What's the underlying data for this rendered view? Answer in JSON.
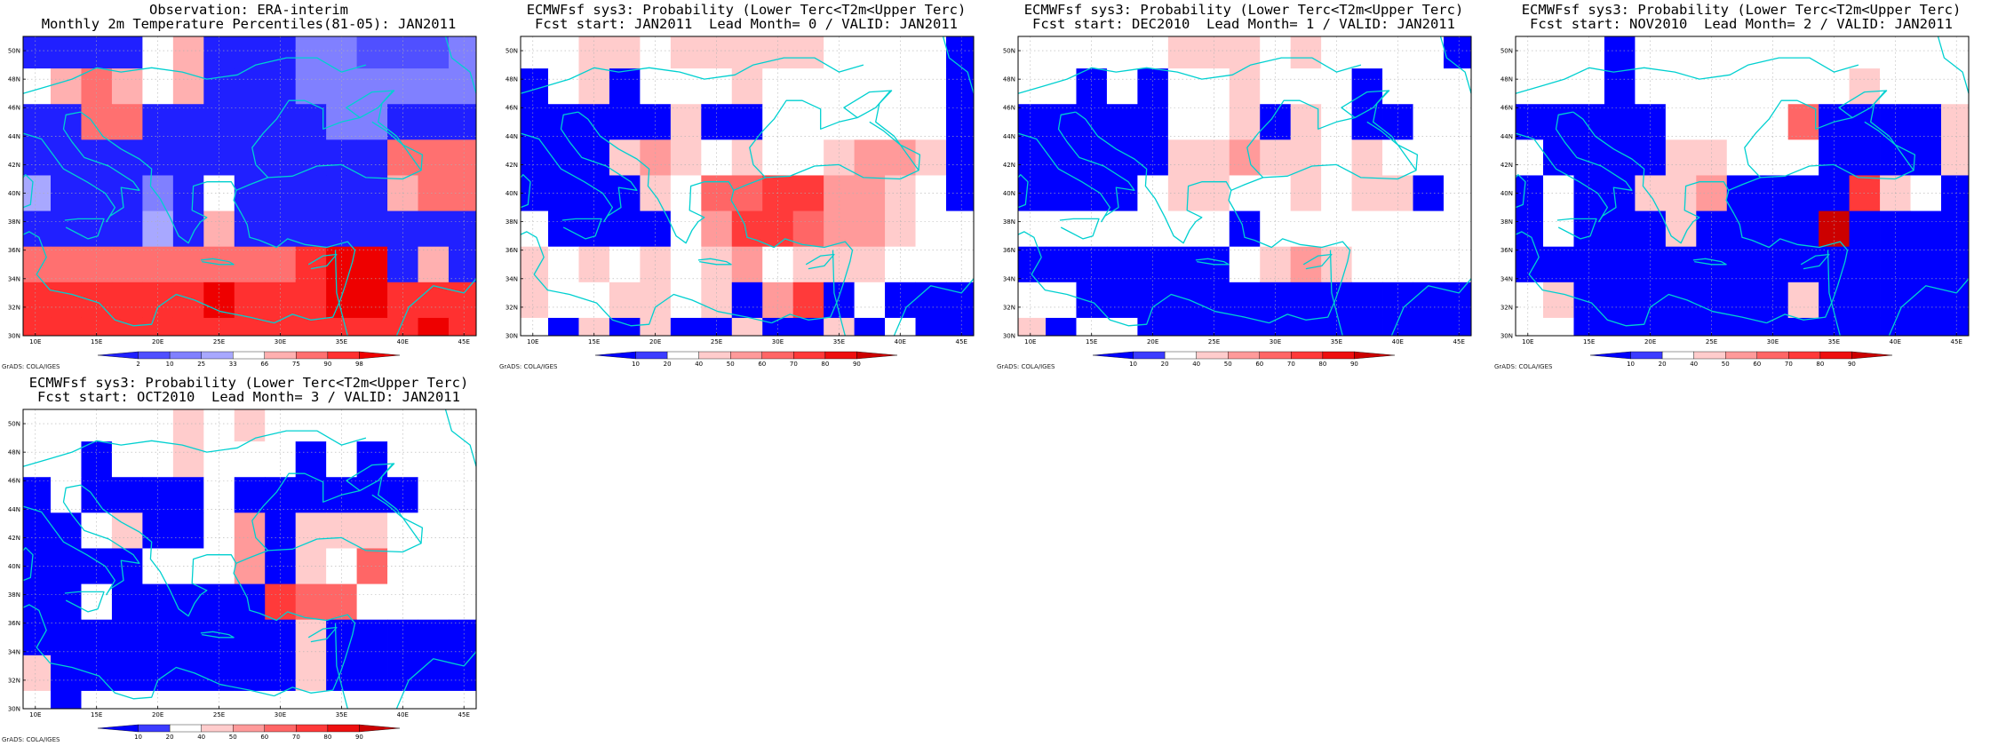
{
  "colors": {
    "coast": "#00d0d0",
    "grid": "#b0b0b0",
    "obs_scale": [
      "#2020ff",
      "#5050ff",
      "#8080ff",
      "#a8a8ff",
      "#ffffff",
      "#ffb0b0",
      "#ff7070",
      "#ff3030",
      "#ee0000"
    ],
    "prob_scale": [
      "#0000ff",
      "#3c3cff",
      "#ffffff",
      "#ffcccc",
      "#ff9a9a",
      "#ff6666",
      "#ff3a3a",
      "#ee1010",
      "#cc0000"
    ]
  },
  "credit": "GrADS: COLA/IGES",
  "lat_labels": [
    "30N",
    "32N",
    "34N",
    "36N",
    "38N",
    "40N",
    "42N",
    "44N",
    "46N",
    "48N",
    "50N"
  ],
  "lon_labels": [
    "10E",
    "15E",
    "20E",
    "25E",
    "30E",
    "35E",
    "40E",
    "45E"
  ],
  "panels": [
    {
      "title1": "Observation: ERA-interim",
      "title2": "Monthly 2m Temperature Percentiles(81-05): JAN2011",
      "colorbar": {
        "labels": [
          "2",
          "10",
          "25",
          "33",
          "66",
          "75",
          "90",
          "98"
        ]
      },
      "chart_data": {
        "type": "heatmap",
        "title": "Observation: ERA-interim / Monthly 2m Temperature Percentiles(81-05): JAN2011",
        "x_range_deg_E": [
          9,
          46
        ],
        "y_range_deg_N": [
          30,
          51
        ],
        "grid_deg": 2.5,
        "rows_lat_centers_N_desc": [
          49.75,
          47.5,
          45,
          42.5,
          40,
          37.5,
          35,
          32.5,
          30.5
        ],
        "cols_lon_centers_E": [
          9.75,
          12.5,
          15,
          17.5,
          20,
          22.5,
          25,
          27.5,
          30,
          32.5,
          35,
          37.5,
          40,
          42.5,
          45
        ],
        "values_class_index": [
          [
            0,
            0,
            0,
            0,
            4,
            5,
            0,
            0,
            0,
            2,
            2,
            1,
            1,
            1,
            2
          ],
          [
            4,
            5,
            6,
            5,
            4,
            5,
            0,
            0,
            0,
            2,
            2,
            2,
            2,
            2,
            2
          ],
          [
            0,
            0,
            6,
            6,
            0,
            0,
            0,
            0,
            0,
            0,
            2,
            2,
            0,
            0,
            0
          ],
          [
            0,
            0,
            0,
            0,
            0,
            0,
            0,
            0,
            0,
            0,
            0,
            0,
            6,
            6,
            6
          ],
          [
            3,
            0,
            0,
            0,
            2,
            0,
            4,
            0,
            0,
            0,
            0,
            0,
            5,
            6,
            6
          ],
          [
            0,
            0,
            0,
            0,
            3,
            0,
            5,
            0,
            0,
            0,
            0,
            0,
            0,
            0,
            0
          ],
          [
            6,
            6,
            6,
            6,
            6,
            6,
            6,
            6,
            6,
            7,
            8,
            8,
            0,
            5,
            0
          ],
          [
            7,
            7,
            7,
            7,
            7,
            7,
            8,
            7,
            7,
            7,
            8,
            8,
            7,
            7,
            7
          ],
          [
            7,
            7,
            7,
            7,
            7,
            7,
            7,
            7,
            7,
            7,
            7,
            7,
            7,
            8,
            7
          ]
        ],
        "class_legend": [
          "<2",
          "2-10",
          "10-25",
          "25-33",
          "33-66",
          "66-75",
          "75-90",
          "90-98",
          ">98"
        ]
      }
    },
    {
      "title1": "ECMWFsf sys3: Probability (Lower Terc<T2m<Upper Terc)",
      "title2": "Fcst start: JAN2011  Lead Month= 0 / VALID: JAN2011",
      "colorbar": {
        "labels": [
          "10",
          "20",
          "40",
          "50",
          "60",
          "70",
          "80",
          "90"
        ]
      },
      "chart_data": {
        "type": "heatmap",
        "x_range_deg_E": [
          9,
          46
        ],
        "y_range_deg_N": [
          30,
          51
        ],
        "grid_deg": 2.5,
        "values_class_index": [
          [
            2,
            2,
            3,
            3,
            2,
            3,
            3,
            3,
            3,
            3,
            2,
            2,
            2,
            2,
            0
          ],
          [
            0,
            2,
            3,
            0,
            2,
            2,
            2,
            3,
            2,
            2,
            2,
            2,
            2,
            2,
            0
          ],
          [
            0,
            0,
            0,
            0,
            0,
            3,
            0,
            0,
            2,
            2,
            2,
            2,
            2,
            2,
            0
          ],
          [
            0,
            0,
            0,
            3,
            4,
            3,
            2,
            3,
            2,
            2,
            3,
            4,
            4,
            3,
            0
          ],
          [
            0,
            0,
            0,
            0,
            3,
            2,
            5,
            5,
            6,
            6,
            4,
            4,
            3,
            2,
            0
          ],
          [
            2,
            0,
            0,
            0,
            0,
            2,
            4,
            6,
            6,
            5,
            4,
            4,
            3,
            2,
            2
          ],
          [
            3,
            2,
            3,
            2,
            3,
            2,
            3,
            4,
            2,
            3,
            3,
            3,
            2,
            2,
            2
          ],
          [
            3,
            2,
            2,
            3,
            3,
            2,
            3,
            0,
            4,
            6,
            0,
            2,
            0,
            0,
            0
          ],
          [
            2,
            0,
            3,
            0,
            3,
            0,
            0,
            3,
            0,
            0,
            3,
            0,
            2,
            0,
            0
          ]
        ]
      }
    },
    {
      "title1": "ECMWFsf sys3: Probability (Lower Terc<T2m<Upper Terc)",
      "title2": "Fcst start: DEC2010  Lead Month= 1 / VALID: JAN2011",
      "colorbar": {
        "labels": [
          "10",
          "20",
          "40",
          "50",
          "60",
          "70",
          "80",
          "90"
        ]
      },
      "chart_data": {
        "type": "heatmap",
        "x_range_deg_E": [
          9,
          46
        ],
        "y_range_deg_N": [
          30,
          51
        ],
        "grid_deg": 2.5,
        "values_class_index": [
          [
            2,
            2,
            2,
            2,
            2,
            3,
            3,
            3,
            2,
            3,
            2,
            2,
            2,
            2,
            0
          ],
          [
            2,
            2,
            0,
            2,
            0,
            2,
            2,
            3,
            2,
            2,
            2,
            0,
            2,
            2,
            2
          ],
          [
            0,
            0,
            0,
            0,
            0,
            2,
            2,
            3,
            0,
            3,
            2,
            0,
            0,
            2,
            2
          ],
          [
            0,
            0,
            0,
            0,
            0,
            3,
            3,
            4,
            3,
            3,
            2,
            3,
            2,
            2,
            2
          ],
          [
            0,
            0,
            0,
            0,
            2,
            3,
            3,
            2,
            2,
            3,
            2,
            3,
            3,
            0,
            2
          ],
          [
            2,
            2,
            2,
            2,
            2,
            2,
            2,
            0,
            2,
            2,
            2,
            2,
            2,
            2,
            2
          ],
          [
            0,
            0,
            0,
            0,
            0,
            0,
            0,
            2,
            3,
            4,
            3,
            2,
            2,
            2,
            2
          ],
          [
            2,
            2,
            0,
            0,
            0,
            0,
            0,
            0,
            0,
            0,
            0,
            0,
            0,
            0,
            0
          ],
          [
            3,
            0,
            2,
            2,
            0,
            0,
            0,
            0,
            0,
            0,
            0,
            0,
            0,
            0,
            0
          ]
        ]
      }
    },
    {
      "title1": "ECMWFsf sys3: Probability (Lower Terc<T2m<Upper Terc)",
      "title2": "Fcst start: NOV2010  Lead Month= 2 / VALID: JAN2011",
      "colorbar": {
        "labels": [
          "10",
          "20",
          "40",
          "50",
          "60",
          "70",
          "80",
          "90"
        ]
      },
      "chart_data": {
        "type": "heatmap",
        "x_range_deg_E": [
          9,
          46
        ],
        "y_range_deg_N": [
          30,
          51
        ],
        "grid_deg": 2.5,
        "values_class_index": [
          [
            2,
            2,
            2,
            0,
            2,
            2,
            2,
            2,
            2,
            2,
            2,
            2,
            2,
            2,
            2
          ],
          [
            2,
            2,
            2,
            0,
            2,
            2,
            2,
            2,
            2,
            2,
            2,
            3,
            2,
            2,
            2
          ],
          [
            0,
            0,
            0,
            0,
            0,
            2,
            2,
            2,
            2,
            5,
            0,
            0,
            0,
            0,
            3
          ],
          [
            2,
            0,
            0,
            0,
            0,
            3,
            3,
            2,
            2,
            2,
            0,
            0,
            0,
            0,
            3
          ],
          [
            0,
            2,
            0,
            0,
            3,
            3,
            4,
            0,
            0,
            0,
            0,
            6,
            3,
            2,
            0
          ],
          [
            0,
            2,
            0,
            0,
            0,
            3,
            0,
            0,
            0,
            0,
            8,
            0,
            0,
            0,
            0
          ],
          [
            0,
            0,
            0,
            0,
            0,
            0,
            0,
            0,
            0,
            0,
            0,
            0,
            0,
            0,
            0
          ],
          [
            2,
            3,
            0,
            0,
            0,
            0,
            0,
            0,
            0,
            3,
            0,
            0,
            0,
            0,
            0
          ],
          [
            2,
            2,
            0,
            0,
            0,
            0,
            0,
            0,
            0,
            0,
            0,
            0,
            0,
            0,
            0
          ]
        ]
      }
    },
    {
      "title1": "ECMWFsf sys3: Probability (Lower Terc<T2m<Upper Terc)",
      "title2": "Fcst start: OCT2010  Lead Month= 3 / VALID: JAN2011",
      "colorbar": {
        "labels": [
          "10",
          "20",
          "40",
          "50",
          "60",
          "70",
          "80",
          "90"
        ]
      },
      "chart_data": {
        "type": "heatmap",
        "x_range_deg_E": [
          9,
          46
        ],
        "y_range_deg_N": [
          30,
          51
        ],
        "grid_deg": 2.5,
        "values_class_index": [
          [
            2,
            2,
            2,
            2,
            2,
            3,
            2,
            3,
            2,
            2,
            2,
            2,
            2,
            2,
            2
          ],
          [
            2,
            2,
            0,
            2,
            2,
            3,
            2,
            2,
            2,
            0,
            2,
            0,
            2,
            2,
            2
          ],
          [
            0,
            2,
            0,
            0,
            0,
            0,
            2,
            0,
            0,
            0,
            0,
            0,
            0,
            2,
            2
          ],
          [
            0,
            0,
            2,
            3,
            0,
            0,
            2,
            4,
            0,
            3,
            3,
            3,
            2,
            2,
            2
          ],
          [
            0,
            0,
            0,
            0,
            2,
            2,
            2,
            4,
            0,
            3,
            2,
            5,
            2,
            2,
            2
          ],
          [
            0,
            0,
            2,
            0,
            0,
            0,
            0,
            0,
            6,
            5,
            5,
            2,
            2,
            2,
            2
          ],
          [
            0,
            0,
            0,
            0,
            0,
            0,
            0,
            0,
            0,
            3,
            0,
            0,
            0,
            0,
            0
          ],
          [
            3,
            0,
            0,
            0,
            0,
            0,
            0,
            0,
            0,
            3,
            0,
            0,
            0,
            0,
            0
          ],
          [
            2,
            0,
            2,
            2,
            2,
            2,
            2,
            2,
            2,
            2,
            2,
            2,
            2,
            2,
            2
          ]
        ]
      }
    }
  ]
}
